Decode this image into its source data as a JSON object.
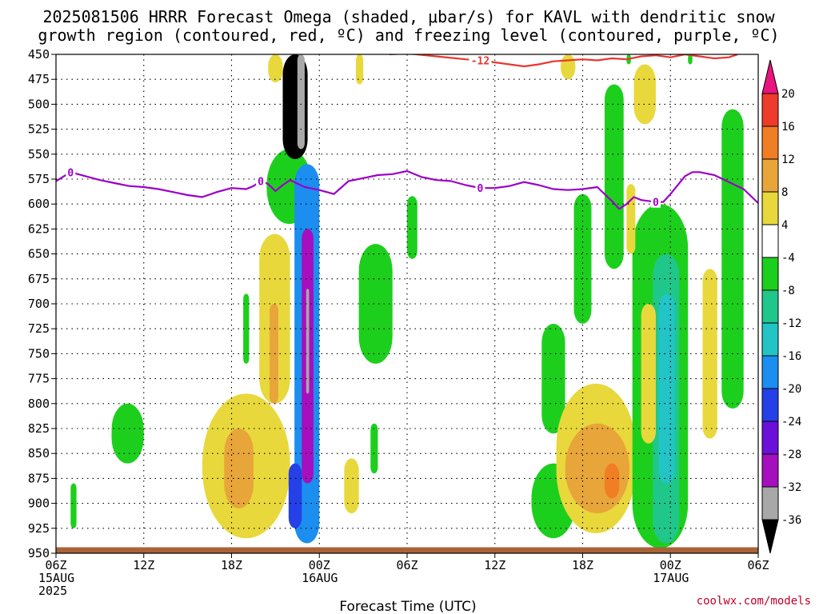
{
  "chart_data": {
    "type": "heatmap",
    "title_lines": [
      "2025081506 HRRR Forecast Omega (shaded, μbar/s) for KAVL with dendritic snow",
      "growth region (contoured, red, ºC) and freezing level (contoured, purple, ºC)"
    ],
    "xlabel": "Forecast Time (UTC)",
    "credit": "coolwx.com/models",
    "y_axis": {
      "quantity": "pressure (hPa)",
      "reversed": true,
      "ylim": [
        450,
        950
      ],
      "ticks": [
        450,
        475,
        500,
        525,
        550,
        575,
        600,
        625,
        650,
        675,
        700,
        725,
        750,
        775,
        800,
        825,
        850,
        875,
        900,
        925,
        950
      ]
    },
    "x_axis": {
      "quantity": "forecast hour",
      "xlim": [
        0,
        48
      ],
      "ticks": [
        {
          "hour": 0,
          "lines": [
            "06Z",
            "15AUG",
            "2025"
          ]
        },
        {
          "hour": 6,
          "lines": [
            "12Z"
          ]
        },
        {
          "hour": 12,
          "lines": [
            "18Z"
          ]
        },
        {
          "hour": 18,
          "lines": [
            "00Z",
            "16AUG"
          ]
        },
        {
          "hour": 24,
          "lines": [
            "06Z"
          ]
        },
        {
          "hour": 30,
          "lines": [
            "12Z"
          ]
        },
        {
          "hour": 36,
          "lines": [
            "18Z"
          ]
        },
        {
          "hour": 42,
          "lines": [
            "00Z",
            "17AUG"
          ]
        },
        {
          "hour": 48,
          "lines": [
            "06Z"
          ]
        }
      ]
    },
    "grid": true,
    "colorbar": {
      "unit": "μbar/s",
      "placement": "right",
      "tick_labels": [
        20,
        16,
        12,
        8,
        4,
        -4,
        -8,
        -12,
        -16,
        -20,
        -24,
        -28,
        -32,
        -36
      ],
      "colors": {
        "gt20": "#e8157f",
        "16_20": "#ef3b2c",
        "12_16": "#f07e24",
        "8_12": "#e8a53a",
        "4_8": "#e8d83c",
        "m4_4": "#ffffff",
        "m8_m4": "#1dcf1d",
        "m12_m8": "#20c78a",
        "m16_m12": "#22c4c6",
        "m20_m16": "#1b8ef0",
        "m24_m20": "#2540e6",
        "m28_m24": "#6a10d8",
        "m32_m28": "#a60fbd",
        "m36_m32": "#a8a8a8",
        "lt36": "#000000"
      }
    },
    "contours": {
      "freezing_level": {
        "color": "#9b00c8",
        "label": "0",
        "points_hour_hpa": [
          [
            0,
            577
          ],
          [
            1,
            568
          ],
          [
            2,
            572
          ],
          [
            3,
            576
          ],
          [
            4,
            579
          ],
          [
            5,
            582
          ],
          [
            6,
            583
          ],
          [
            7,
            585
          ],
          [
            8,
            588
          ],
          [
            9,
            591
          ],
          [
            10,
            593
          ],
          [
            11,
            588
          ],
          [
            12,
            584
          ],
          [
            13,
            585
          ],
          [
            13.5,
            582
          ],
          [
            14,
            577
          ],
          [
            14.5,
            580
          ],
          [
            15,
            587
          ],
          [
            15.5,
            581
          ],
          [
            16,
            576
          ],
          [
            17,
            583
          ],
          [
            18,
            586
          ],
          [
            19,
            590
          ],
          [
            20,
            577
          ],
          [
            21,
            574
          ],
          [
            22,
            571
          ],
          [
            23,
            570
          ],
          [
            24,
            567
          ],
          [
            25,
            573
          ],
          [
            26,
            576
          ],
          [
            27,
            577
          ],
          [
            28,
            581
          ],
          [
            29,
            584
          ],
          [
            30,
            584
          ],
          [
            31,
            582
          ],
          [
            32,
            578
          ],
          [
            33,
            581
          ],
          [
            34,
            585
          ],
          [
            35,
            586
          ],
          [
            36,
            585
          ],
          [
            37,
            583
          ],
          [
            38,
            597
          ],
          [
            38.5,
            605
          ],
          [
            39,
            600
          ],
          [
            39.5,
            593
          ],
          [
            40,
            596
          ],
          [
            41,
            598
          ],
          [
            41.5,
            598
          ],
          [
            42,
            590
          ],
          [
            43,
            572
          ],
          [
            43.5,
            568
          ],
          [
            44,
            568
          ],
          [
            45,
            571
          ],
          [
            46,
            578
          ],
          [
            47,
            585
          ],
          [
            48,
            599
          ]
        ],
        "label_hours": [
          1,
          14,
          29,
          41
        ]
      },
      "dendritic_growth": {
        "color": "#e8362e",
        "label": "-12",
        "points_hour_hpa": [
          [
            22.8,
            450
          ],
          [
            24,
            449
          ],
          [
            26,
            452
          ],
          [
            28,
            455
          ],
          [
            29,
            456
          ],
          [
            30,
            458
          ],
          [
            31,
            460
          ],
          [
            32,
            462
          ],
          [
            33,
            460
          ],
          [
            34,
            457
          ],
          [
            35,
            456
          ],
          [
            36,
            455
          ],
          [
            37,
            456
          ],
          [
            38,
            454
          ],
          [
            39,
            455
          ],
          [
            40,
            452
          ],
          [
            41,
            451
          ],
          [
            42,
            453
          ],
          [
            43,
            450
          ],
          [
            44,
            452
          ],
          [
            45,
            454
          ],
          [
            46,
            453
          ],
          [
            46.6,
            450
          ]
        ],
        "label_hours": [
          29
        ]
      }
    },
    "shaded_regions": [
      {
        "color_class": "4_8",
        "hour_range": [
          14.5,
          15.5
        ],
        "hpa_range": [
          450,
          478
        ]
      },
      {
        "color_class": "m8_m4",
        "hour_range": [
          14.4,
          17.5
        ],
        "hpa_range": [
          545,
          620
        ]
      },
      {
        "color_class": "lt36",
        "hour_range": [
          15.5,
          17.2
        ],
        "hpa_range": [
          450,
          555
        ]
      },
      {
        "color_class": "m36_m32",
        "hour_range": [
          16.5,
          17.0
        ],
        "hpa_range": [
          450,
          545
        ]
      },
      {
        "color_class": "m20_m16",
        "hour_range": [
          16.3,
          18.0
        ],
        "hpa_range": [
          560,
          940
        ]
      },
      {
        "color_class": "m32_m28",
        "hour_range": [
          16.8,
          17.6
        ],
        "hpa_range": [
          625,
          880
        ]
      },
      {
        "color_class": "m36_m32",
        "hour_range": [
          17.1,
          17.3
        ],
        "hpa_range": [
          685,
          790
        ]
      },
      {
        "color_class": "4_8",
        "hour_range": [
          13.9,
          16.0
        ],
        "hpa_range": [
          630,
          800
        ]
      },
      {
        "color_class": "8_12",
        "hour_range": [
          14.6,
          15.2
        ],
        "hpa_range": [
          700,
          800
        ]
      },
      {
        "color_class": "4_8",
        "hour_range": [
          10.0,
          16.0
        ],
        "hpa_range": [
          790,
          935
        ]
      },
      {
        "color_class": "8_12",
        "hour_range": [
          11.5,
          13.5
        ],
        "hpa_range": [
          825,
          905
        ]
      },
      {
        "color_class": "m24_m20",
        "hour_range": [
          15.9,
          16.8
        ],
        "hpa_range": [
          860,
          925
        ]
      },
      {
        "color_class": "m8_m4",
        "hour_range": [
          3.8,
          6.0
        ],
        "hpa_range": [
          800,
          860
        ]
      },
      {
        "color_class": "m8_m4",
        "hour_range": [
          1.0,
          1.4
        ],
        "hpa_range": [
          880,
          925
        ]
      },
      {
        "color_class": "m8_m4",
        "hour_range": [
          12.8,
          13.2
        ],
        "hpa_range": [
          690,
          760
        ]
      },
      {
        "color_class": "m8_m4",
        "hour_range": [
          20.7,
          23.0
        ],
        "hpa_range": [
          640,
          760
        ]
      },
      {
        "color_class": "m8_m4",
        "hour_range": [
          24.0,
          24.7
        ],
        "hpa_range": [
          592,
          655
        ]
      },
      {
        "color_class": "m8_m4",
        "hour_range": [
          21.5,
          22.0
        ],
        "hpa_range": [
          820,
          870
        ]
      },
      {
        "color_class": "4_8",
        "hour_range": [
          19.7,
          20.7
        ],
        "hpa_range": [
          855,
          910
        ]
      },
      {
        "color_class": "4_8",
        "hour_range": [
          20.5,
          21.0
        ],
        "hpa_range": [
          450,
          480
        ]
      },
      {
        "color_class": "4_8",
        "hour_range": [
          34.5,
          35.5
        ],
        "hpa_range": [
          450,
          475
        ]
      },
      {
        "color_class": "m8_m4",
        "hour_range": [
          37.5,
          38.8
        ],
        "hpa_range": [
          480,
          665
        ]
      },
      {
        "color_class": "m8_m4",
        "hour_range": [
          35.4,
          36.6
        ],
        "hpa_range": [
          590,
          720
        ]
      },
      {
        "color_class": "4_8",
        "hour_range": [
          39.5,
          41.0
        ],
        "hpa_range": [
          460,
          520
        ]
      },
      {
        "color_class": "m8_m4",
        "hour_range": [
          32.5,
          35.5
        ],
        "hpa_range": [
          860,
          935
        ]
      },
      {
        "color_class": "m8_m4",
        "hour_range": [
          33.2,
          34.8
        ],
        "hpa_range": [
          720,
          830
        ]
      },
      {
        "color_class": "4_8",
        "hour_range": [
          34.2,
          39.6
        ],
        "hpa_range": [
          780,
          930
        ]
      },
      {
        "color_class": "8_12",
        "hour_range": [
          34.8,
          39.2
        ],
        "hpa_range": [
          820,
          910
        ]
      },
      {
        "color_class": "12_16",
        "hour_range": [
          37.5,
          38.5
        ],
        "hpa_range": [
          860,
          895
        ]
      },
      {
        "color_class": "m8_m4",
        "hour_range": [
          39.4,
          43.2
        ],
        "hpa_range": [
          600,
          945
        ]
      },
      {
        "color_class": "m12_m8",
        "hour_range": [
          40.8,
          42.6
        ],
        "hpa_range": [
          650,
          940
        ]
      },
      {
        "color_class": "m16_m12",
        "hour_range": [
          41.2,
          42.3
        ],
        "hpa_range": [
          690,
          880
        ]
      },
      {
        "color_class": "4_8",
        "hour_range": [
          39.0,
          39.6
        ],
        "hpa_range": [
          580,
          650
        ]
      },
      {
        "color_class": "4_8",
        "hour_range": [
          40.0,
          41.0
        ],
        "hpa_range": [
          700,
          840
        ]
      },
      {
        "color_class": "m8_m4",
        "hour_range": [
          45.5,
          47.0
        ],
        "hpa_range": [
          505,
          805
        ]
      },
      {
        "color_class": "4_8",
        "hour_range": [
          44.2,
          45.2
        ],
        "hpa_range": [
          665,
          835
        ]
      },
      {
        "color_class": "m8_m4",
        "hour_range": [
          39.0,
          39.3
        ],
        "hpa_range": [
          450,
          460
        ]
      },
      {
        "color_class": "m8_m4",
        "hour_range": [
          43.2,
          43.5
        ],
        "hpa_range": [
          450,
          460
        ]
      }
    ],
    "terrain": {
      "color": "#a86438",
      "hpa_range": [
        944,
        950
      ]
    }
  }
}
